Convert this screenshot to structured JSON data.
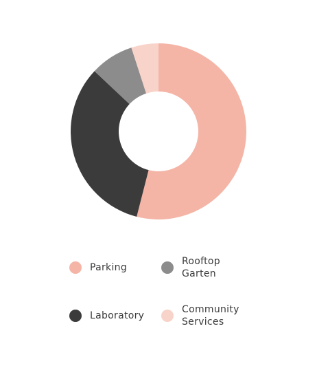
{
  "chart_data": {
    "type": "pie",
    "variant": "donut",
    "title": "",
    "slices": [
      {
        "label": "Parking",
        "value": 54,
        "color": "#f4b5a7"
      },
      {
        "label": "Laboratory",
        "value": 33,
        "color": "#3b3b3b"
      },
      {
        "label": "Rooftop Garten",
        "value": 8,
        "color": "#8c8c8c"
      },
      {
        "label": "Community Services",
        "value": 5,
        "color": "#f8d3c9"
      }
    ],
    "start_angle_deg": 0,
    "direction": "clockwise",
    "legend_position": "bottom"
  },
  "legend": {
    "items": [
      {
        "label": "Parking",
        "color": "#f4b5a7"
      },
      {
        "label": "Rooftop\nGarten",
        "color": "#8c8c8c"
      },
      {
        "label": "Laboratory",
        "color": "#3b3b3b"
      },
      {
        "label": "Community\nServices",
        "color": "#f8d3c9"
      }
    ]
  }
}
